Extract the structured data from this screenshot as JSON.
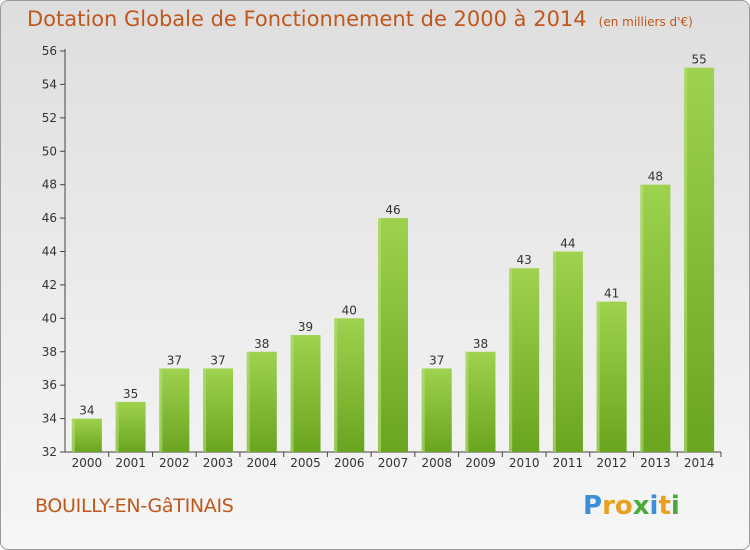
{
  "chart_data": {
    "type": "bar",
    "title": "Dotation Globale de Fonctionnement de 2000 à 2014",
    "subtitle": "(en milliers d'€)",
    "categories": [
      "2000",
      "2001",
      "2002",
      "2003",
      "2004",
      "2005",
      "2006",
      "2007",
      "2008",
      "2009",
      "2010",
      "2011",
      "2012",
      "2013",
      "2014"
    ],
    "values": [
      34,
      35,
      37,
      37,
      38,
      39,
      40,
      46,
      37,
      38,
      43,
      44,
      41,
      48,
      55
    ],
    "value_labels": [
      "34",
      "35",
      "37",
      "37",
      "38",
      "39",
      "40",
      "46",
      "37",
      "38",
      "43",
      "44",
      "41",
      "48",
      "55"
    ],
    "ylim": [
      32,
      56
    ],
    "yticks": [
      "32",
      "34",
      "36",
      "38",
      "40",
      "42",
      "44",
      "46",
      "48",
      "50",
      "52",
      "54",
      "56"
    ],
    "xlabel": "",
    "ylabel": "",
    "grid": false,
    "bar_color": "#8cc63f"
  },
  "footer": {
    "commune": "BOUILLY-EN-GâTINAIS",
    "logo_text": "Proxiti",
    "logo_letters": [
      "P",
      "r",
      "o",
      "x",
      "i",
      "t",
      "i"
    ],
    "logo_colors": [
      "#3a8fd6",
      "#e8a020",
      "#e8a020",
      "#4aaa3a",
      "#3a8fd6",
      "#e8a020",
      "#4aaa3a"
    ]
  }
}
